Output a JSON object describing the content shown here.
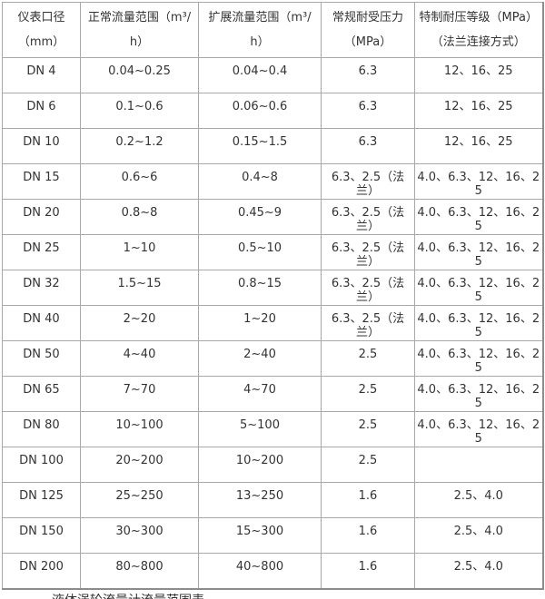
{
  "colors": {
    "background": "#ffffff",
    "border_outer": "#8c8c8c",
    "border_inner": "#a8a8a8",
    "text": "#333333"
  },
  "table": {
    "headers": [
      "仪表口径（mm）",
      "正常流量范围（m³/h）",
      "扩展流量范围（m³/h）",
      "常规耐受压力（MPa）",
      "特制耐压等级（MPa）（法兰连接方式）"
    ],
    "rows": [
      [
        "DN 4",
        "0.04~0.25",
        "0.04~0.4",
        "6.3",
        "12、16、25"
      ],
      [
        "DN 6",
        "0.1~0.6",
        "0.06~0.6",
        "6.3",
        "12、16、25"
      ],
      [
        "DN 10",
        "0.2~1.2",
        "0.15~1.5",
        "6.3",
        "12、16、25"
      ],
      [
        "DN 15",
        "0.6~6",
        "0.4~8",
        "6.3、2.5（法兰）",
        "4.0、6.3、12、16、25"
      ],
      [
        "DN 20",
        "0.8~8",
        "0.45~9",
        "6.3、2.5（法兰）",
        "4.0、6.3、12、16、25"
      ],
      [
        "DN 25",
        "1~10",
        "0.5~10",
        "6.3、2.5（法兰）",
        "4.0、6.3、12、16、25"
      ],
      [
        "DN 32",
        "1.5~15",
        "0.8~15",
        "6.3、2.5（法兰）",
        "4.0、6.3、12、16、25"
      ],
      [
        "DN 40",
        "2~20",
        "1~20",
        "6.3、2.5（法兰）",
        "4.0、6.3、12、16、25"
      ],
      [
        "DN 50",
        "4~40",
        "2~40",
        "2.5",
        "4.0、6.3、12、16、25"
      ],
      [
        "DN 65",
        "7~70",
        "4~70",
        "2.5",
        "4.0、6.3、12、16、25"
      ],
      [
        "DN 80",
        "10~100",
        "5~100",
        "2.5",
        "4.0、6.3、12、16、25"
      ],
      [
        "DN 100",
        "20~200",
        "10~200",
        "2.5",
        ""
      ],
      [
        "DN 125",
        "25~250",
        "13~250",
        "1.6",
        "2.5、4.0"
      ],
      [
        "DN 150",
        "30~300",
        "15~300",
        "1.6",
        "2.5、4.0"
      ],
      [
        "DN 200",
        "80~800",
        "40~800",
        "1.6",
        "2.5、4.0"
      ]
    ]
  },
  "bottom_cropped_text": "液体涡轮流量计流量范围表"
}
